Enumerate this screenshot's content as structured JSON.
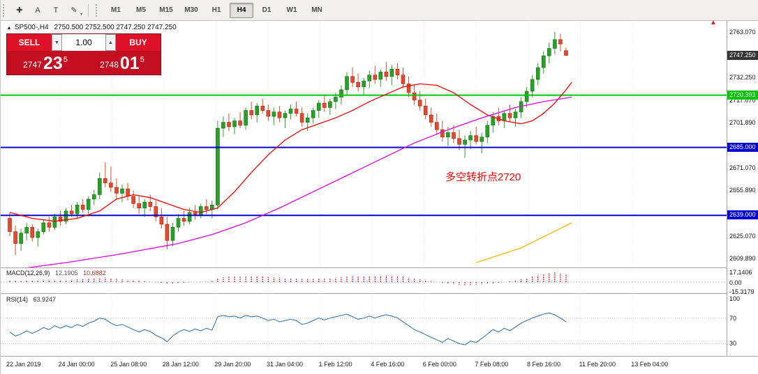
{
  "toolbar": {
    "tools": [
      {
        "name": "crosshair-icon",
        "glyph": "✚"
      },
      {
        "name": "text-icon",
        "glyph": "A"
      },
      {
        "name": "text-label-icon",
        "glyph": "T"
      },
      {
        "name": "draw-tools-icon",
        "glyph": "✎",
        "dropdown": "▾"
      }
    ],
    "timeframes": [
      "M1",
      "M5",
      "M15",
      "M30",
      "H1",
      "H4",
      "D1",
      "W1",
      "MN"
    ],
    "active_timeframe": "H4"
  },
  "chart": {
    "title": "SP500-,H4",
    "ohlc_text": "2750.500 2752.500 2747.250 2747.250",
    "collapse_marker_glyph": "▴",
    "corner_marker_glyph": "▲",
    "annotation": {
      "text": "多空转折点2720",
      "color": "#ff0000"
    },
    "trade_panel": {
      "sell": "SELL",
      "buy": "BUY",
      "lot": "1.00",
      "spin_down": "▼",
      "spin_up": "▲",
      "bid": {
        "prefix": "2747",
        "big": "23",
        "sup": "5"
      },
      "ask": {
        "prefix": "2748",
        "big": "01",
        "sup": "5"
      }
    },
    "current_price_tag": "2747.250",
    "current_price": 2747.25,
    "current_tag_color": "#343434",
    "axis_labels": [
      {
        "text": "2763.070",
        "price": 2763.07
      },
      {
        "text": "2732.250",
        "price": 2732.25
      },
      {
        "text": "2717.070",
        "price": 2717.07
      },
      {
        "text": "2701.890",
        "price": 2701.89
      },
      {
        "text": "2671.070",
        "price": 2671.07
      },
      {
        "text": "2655.890",
        "price": 2655.89
      },
      {
        "text": "2625.070",
        "price": 2625.07
      },
      {
        "text": "2609.890",
        "price": 2609.89
      }
    ],
    "levels": [
      {
        "text": "2720.393",
        "price": 2720.393,
        "color": "#00c400"
      },
      {
        "text": "2685.000",
        "price": 2685.0,
        "color": "#0000d0"
      },
      {
        "text": "2639.000",
        "price": 2639.0,
        "color": "#0000d0"
      }
    ],
    "time_labels": [
      "22 Jan 2019",
      "24 Jan 00:00",
      "25 Jan 08:00",
      "28 Jan 12:00",
      "29 Jan 20:00",
      "31 Jan 04:00",
      "1 Feb 12:00",
      "4 Feb 16:00",
      "6 Feb 00:00",
      "7 Feb 08:00",
      "8 Feb 16:00",
      "11 Feb 20:00",
      "13 Feb 04:00"
    ]
  },
  "chart_data": {
    "type": "candlestick",
    "symbol": "SP500-",
    "period": "H4",
    "title": "SP500-,H4",
    "x_labels": [
      "22 Jan 2019",
      "24 Jan 00:00",
      "25 Jan 08:00",
      "28 Jan 12:00",
      "29 Jan 20:00",
      "31 Jan 04:00",
      "1 Feb 12:00",
      "4 Feb 16:00",
      "6 Feb 00:00",
      "7 Feb 08:00",
      "8 Feb 16:00",
      "11 Feb 20:00",
      "13 Feb 04:00"
    ],
    "price_range": [
      2603.77,
      2770.61
    ],
    "up_color": "#28a028",
    "up_stroke": "#1a701a",
    "down_color": "#e2492e",
    "down_stroke": "#a32b14",
    "horizontal_levels": [
      2720.393,
      2685.0,
      2639.0
    ],
    "candles": [
      [
        2637,
        2641,
        2625,
        2628
      ],
      [
        2628,
        2632,
        2612,
        2620
      ],
      [
        2620,
        2630,
        2615,
        2627
      ],
      [
        2627,
        2634,
        2622,
        2631
      ],
      [
        2631,
        2633,
        2621,
        2624
      ],
      [
        2624,
        2630,
        2618,
        2628
      ],
      [
        2628,
        2636,
        2626,
        2634
      ],
      [
        2634,
        2638,
        2628,
        2631
      ],
      [
        2631,
        2640,
        2629,
        2638
      ],
      [
        2638,
        2642,
        2632,
        2635
      ],
      [
        2635,
        2644,
        2633,
        2642
      ],
      [
        2642,
        2646,
        2638,
        2640
      ],
      [
        2640,
        2648,
        2637,
        2646
      ],
      [
        2646,
        2650,
        2641,
        2643
      ],
      [
        2643,
        2652,
        2640,
        2650
      ],
      [
        2650,
        2656,
        2646,
        2653
      ],
      [
        2653,
        2668,
        2650,
        2664
      ],
      [
        2664,
        2675,
        2658,
        2661
      ],
      [
        2661,
        2672,
        2655,
        2658
      ],
      [
        2658,
        2664,
        2650,
        2654
      ],
      [
        2654,
        2660,
        2648,
        2657
      ],
      [
        2657,
        2661,
        2649,
        2652
      ],
      [
        2652,
        2656,
        2644,
        2647
      ],
      [
        2647,
        2652,
        2640,
        2644
      ],
      [
        2644,
        2650,
        2638,
        2648
      ],
      [
        2648,
        2653,
        2642,
        2645
      ],
      [
        2645,
        2649,
        2635,
        2638
      ],
      [
        2638,
        2644,
        2630,
        2633
      ],
      [
        2633,
        2638,
        2616,
        2622
      ],
      [
        2622,
        2634,
        2618,
        2631
      ],
      [
        2631,
        2640,
        2628,
        2637
      ],
      [
        2637,
        2642,
        2632,
        2635
      ],
      [
        2635,
        2644,
        2633,
        2641
      ],
      [
        2641,
        2646,
        2636,
        2639
      ],
      [
        2639,
        2647,
        2637,
        2645
      ],
      [
        2645,
        2650,
        2640,
        2643
      ],
      [
        2643,
        2649,
        2637,
        2646
      ],
      [
        2646,
        2703,
        2643,
        2698
      ],
      [
        2698,
        2706,
        2692,
        2702
      ],
      [
        2702,
        2708,
        2696,
        2699
      ],
      [
        2699,
        2705,
        2694,
        2703
      ],
      [
        2703,
        2709,
        2698,
        2700
      ],
      [
        2700,
        2712,
        2697,
        2710
      ],
      [
        2710,
        2716,
        2704,
        2707
      ],
      [
        2707,
        2715,
        2702,
        2713
      ],
      [
        2713,
        2718,
        2708,
        2710
      ],
      [
        2710,
        2714,
        2703,
        2706
      ],
      [
        2706,
        2712,
        2700,
        2709
      ],
      [
        2709,
        2713,
        2702,
        2705
      ],
      [
        2705,
        2710,
        2698,
        2708
      ],
      [
        2708,
        2714,
        2704,
        2711
      ],
      [
        2711,
        2716,
        2706,
        2708
      ],
      [
        2708,
        2712,
        2699,
        2702
      ],
      [
        2702,
        2708,
        2696,
        2705
      ],
      [
        2705,
        2712,
        2701,
        2710
      ],
      [
        2710,
        2717,
        2705,
        2715
      ],
      [
        2715,
        2720,
        2709,
        2712
      ],
      [
        2712,
        2718,
        2707,
        2716
      ],
      [
        2716,
        2722,
        2711,
        2719
      ],
      [
        2719,
        2727,
        2714,
        2724
      ],
      [
        2724,
        2736,
        2720,
        2733
      ],
      [
        2733,
        2739,
        2726,
        2729
      ],
      [
        2729,
        2735,
        2723,
        2726
      ],
      [
        2726,
        2732,
        2720,
        2730
      ],
      [
        2730,
        2737,
        2725,
        2734
      ],
      [
        2734,
        2740,
        2728,
        2731
      ],
      [
        2731,
        2738,
        2726,
        2736
      ],
      [
        2736,
        2743,
        2730,
        2733
      ],
      [
        2733,
        2741,
        2727,
        2738
      ],
      [
        2738,
        2742,
        2731,
        2734
      ],
      [
        2734,
        2739,
        2725,
        2728
      ],
      [
        2728,
        2733,
        2719,
        2722
      ],
      [
        2722,
        2727,
        2714,
        2717
      ],
      [
        2717,
        2723,
        2710,
        2713
      ],
      [
        2713,
        2718,
        2704,
        2707
      ],
      [
        2707,
        2712,
        2699,
        2702
      ],
      [
        2702,
        2708,
        2694,
        2697
      ],
      [
        2697,
        2703,
        2689,
        2692
      ],
      [
        2692,
        2699,
        2686,
        2695
      ],
      [
        2695,
        2700,
        2688,
        2691
      ],
      [
        2691,
        2697,
        2683,
        2687
      ],
      [
        2687,
        2693,
        2678,
        2690
      ],
      [
        2690,
        2696,
        2684,
        2693
      ],
      [
        2693,
        2699,
        2687,
        2689
      ],
      [
        2689,
        2695,
        2681,
        2692
      ],
      [
        2692,
        2703,
        2688,
        2700
      ],
      [
        2700,
        2709,
        2695,
        2706
      ],
      [
        2706,
        2712,
        2700,
        2703
      ],
      [
        2703,
        2710,
        2698,
        2708
      ],
      [
        2708,
        2714,
        2702,
        2705
      ],
      [
        2705,
        2711,
        2699,
        2709
      ],
      [
        2709,
        2719,
        2705,
        2716
      ],
      [
        2716,
        2726,
        2712,
        2723
      ],
      [
        2723,
        2734,
        2719,
        2731
      ],
      [
        2731,
        2742,
        2727,
        2739
      ],
      [
        2739,
        2750,
        2735,
        2747
      ],
      [
        2747,
        2756,
        2742,
        2752
      ],
      [
        2752,
        2763,
        2748,
        2758
      ],
      [
        2758,
        2762,
        2750,
        2755
      ],
      [
        2750.5,
        2752.5,
        2747.25,
        2747.25
      ]
    ],
    "overlays": [
      {
        "name": "ma-fast-red-line",
        "color": "#ff0000",
        "width": 1.3,
        "points": [
          [
            0,
            2641
          ],
          [
            4,
            2637
          ],
          [
            8,
            2635
          ],
          [
            12,
            2637
          ],
          [
            16,
            2642
          ],
          [
            19,
            2650
          ],
          [
            22,
            2653
          ],
          [
            25,
            2651
          ],
          [
            28,
            2647
          ],
          [
            31,
            2643
          ],
          [
            34,
            2641
          ],
          [
            37,
            2644
          ],
          [
            40,
            2655
          ],
          [
            43,
            2668
          ],
          [
            46,
            2680
          ],
          [
            49,
            2690
          ],
          [
            52,
            2697
          ],
          [
            55,
            2701
          ],
          [
            58,
            2705
          ],
          [
            61,
            2710
          ],
          [
            64,
            2716
          ],
          [
            67,
            2721
          ],
          [
            70,
            2726
          ],
          [
            73,
            2728
          ],
          [
            76,
            2727
          ],
          [
            79,
            2722
          ],
          [
            82,
            2714
          ],
          [
            85,
            2707
          ],
          [
            88,
            2703
          ],
          [
            91,
            2701
          ],
          [
            93,
            2703
          ],
          [
            95,
            2708
          ],
          [
            97,
            2715
          ],
          [
            99,
            2724
          ],
          [
            100,
            2729
          ]
        ]
      },
      {
        "name": "ma-slow-magenta-line",
        "color": "#e800e8",
        "width": 1.3,
        "points": [
          [
            0,
            2602
          ],
          [
            10,
            2607
          ],
          [
            20,
            2613
          ],
          [
            30,
            2620
          ],
          [
            36,
            2626
          ],
          [
            42,
            2634
          ],
          [
            48,
            2644
          ],
          [
            54,
            2655
          ],
          [
            60,
            2666
          ],
          [
            66,
            2677
          ],
          [
            72,
            2688
          ],
          [
            78,
            2697
          ],
          [
            84,
            2705
          ],
          [
            90,
            2712
          ],
          [
            95,
            2716
          ],
          [
            100,
            2719
          ]
        ]
      },
      {
        "name": "trendline-yellow",
        "color": "#f0c020",
        "width": 1.5,
        "points": [
          [
            83,
            2607
          ],
          [
            91,
            2617
          ],
          [
            100,
            2634
          ]
        ]
      }
    ]
  },
  "macd": {
    "name": "MACD(12,26,9)",
    "value_main": "12.1905",
    "value_signal": "10.6882",
    "color": "#e03030",
    "axis": [
      {
        "text": "17.1406",
        "v": 17.14
      },
      {
        "text": "0.00",
        "v": 0
      },
      {
        "text": "-15.3179",
        "v": -15.32
      }
    ],
    "values": [
      3,
      2.5,
      2,
      2.5,
      3,
      3.5,
      4,
      4,
      3.5,
      3,
      3.5,
      4,
      4.5,
      5,
      5.5,
      6,
      7,
      7.5,
      6.5,
      5.5,
      4.5,
      4,
      3.5,
      2.5,
      1.5,
      0.5,
      -0.5,
      -1.5,
      -2.5,
      -2,
      -1.5,
      -1,
      -0.5,
      0,
      0.5,
      0.5,
      1,
      6,
      8,
      9,
      9.5,
      9,
      10,
      10.5,
      10,
      9.5,
      8.5,
      8,
      7.5,
      7,
      7,
      6.5,
      5.5,
      5,
      5.5,
      6,
      6.5,
      7,
      7.5,
      8.5,
      10,
      10.5,
      10,
      9.5,
      10,
      10,
      10.5,
      11,
      10.5,
      10,
      9,
      7.5,
      6,
      4.5,
      3,
      1.5,
      0,
      -1.5,
      -3,
      -4,
      -5,
      -5.5,
      -5,
      -4.5,
      -4,
      -3,
      -2,
      -1,
      0,
      1,
      3,
      5,
      7,
      9,
      11,
      13,
      15,
      17.1,
      14.5,
      12.2
    ]
  },
  "rsi": {
    "name": "RSI(14)",
    "value": "63.9247",
    "color": "#3b78b0",
    "axis": [
      {
        "text": "100",
        "v": 100
      },
      {
        "text": "70",
        "v": 70
      },
      {
        "text": "30",
        "v": 30
      }
    ],
    "levels": [
      70,
      30
    ],
    "values": [
      48,
      42,
      45,
      50,
      46,
      50,
      55,
      52,
      58,
      54,
      58,
      55,
      60,
      57,
      62,
      65,
      70,
      68,
      62,
      58,
      60,
      56,
      52,
      48,
      52,
      49,
      43,
      39,
      33,
      42,
      48,
      52,
      49,
      53,
      50,
      54,
      51,
      72,
      74,
      72,
      73,
      70,
      74,
      72,
      73,
      70,
      66,
      68,
      64,
      66,
      68,
      66,
      60,
      62,
      66,
      70,
      67,
      70,
      72,
      74,
      76,
      72,
      68,
      70,
      73,
      70,
      73,
      75,
      73,
      70,
      64,
      58,
      52,
      48,
      44,
      40,
      36,
      32,
      38,
      34,
      30,
      28,
      34,
      32,
      38,
      45,
      52,
      48,
      54,
      50,
      56,
      62,
      66,
      70,
      73,
      76,
      78,
      75,
      70,
      63.9
    ]
  }
}
